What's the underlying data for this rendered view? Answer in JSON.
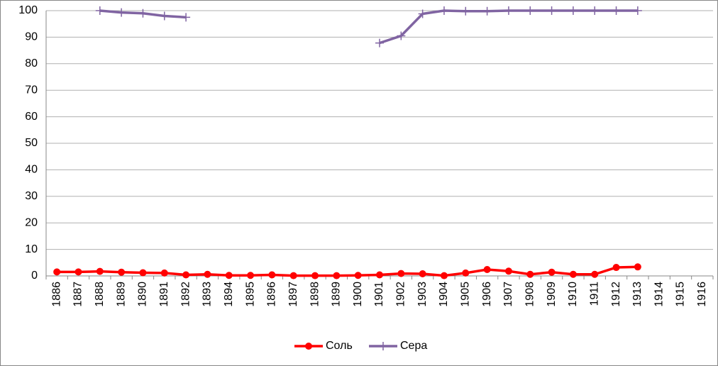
{
  "chart_data": {
    "type": "line",
    "categories": [
      "1886",
      "1887",
      "1888",
      "1889",
      "1890",
      "1891",
      "1892",
      "1893",
      "1894",
      "1895",
      "1896",
      "1897",
      "1898",
      "1899",
      "1900",
      "1901",
      "1902",
      "1903",
      "1904",
      "1905",
      "1906",
      "1907",
      "1908",
      "1909",
      "1910",
      "1911",
      "1912",
      "1913",
      "1914",
      "1915",
      "1916"
    ],
    "series": [
      {
        "name": "Соль",
        "color": "#ff0000",
        "marker": "circle",
        "values": [
          1.5,
          1.5,
          1.7,
          1.4,
          1.2,
          1.1,
          0.4,
          0.6,
          0.2,
          0.2,
          0.4,
          0.1,
          0.1,
          0.1,
          0.2,
          0.4,
          0.9,
          0.8,
          0.1,
          1.1,
          2.4,
          1.8,
          0.6,
          1.4,
          0.6,
          0.6,
          3.2,
          3.4,
          null,
          null,
          null
        ]
      },
      {
        "name": "Сера",
        "color": "#8064a2",
        "marker": "plus",
        "values": [
          null,
          null,
          100,
          99.3,
          99,
          98,
          97.5,
          null,
          null,
          null,
          null,
          null,
          null,
          null,
          null,
          87.8,
          90.5,
          98.8,
          100,
          99.8,
          99.8,
          100,
          100,
          100,
          100,
          100,
          100,
          100,
          null,
          null,
          null
        ]
      }
    ],
    "ylim": [
      0,
      100
    ],
    "yticks": [
      0,
      10,
      20,
      30,
      40,
      50,
      60,
      70,
      80,
      90,
      100
    ],
    "grid": true,
    "legend": "bottom"
  }
}
